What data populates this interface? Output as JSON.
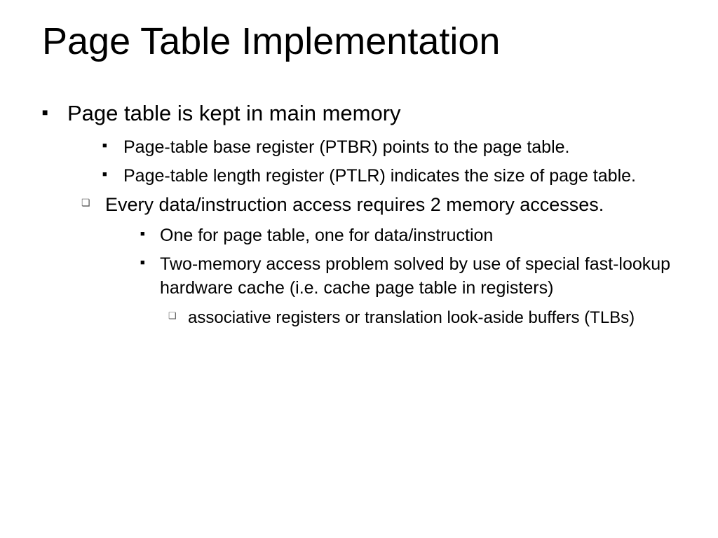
{
  "slide": {
    "title": "Page Table Implementation",
    "title_fontsize": 54,
    "background_color": "#ffffff",
    "text_color": "#000000",
    "main": {
      "text": "Page table is kept in main memory",
      "fontsize": 31,
      "sub1": {
        "bullet_style": "filled-square",
        "items": [
          "Page-table base register (PTBR) points to the page table.",
          "Page-table length register (PTLR) indicates the size of page table."
        ],
        "fontsize": 25
      },
      "sub2": {
        "bullet_style": "hollow-square",
        "text": "Every data/instruction access requires 2 memory accesses.",
        "fontsize": 27,
        "sub": {
          "bullet_style": "filled-square",
          "items": [
            "One for page table, one for data/instruction",
            "Two-memory access problem solved by use of special fast-lookup hardware cache  (i.e. cache page table in registers)"
          ],
          "fontsize": 25,
          "sub": {
            "bullet_style": "hollow-square",
            "text": "associative registers or translation look-aside buffers (TLBs)",
            "fontsize": 24
          }
        }
      }
    }
  }
}
